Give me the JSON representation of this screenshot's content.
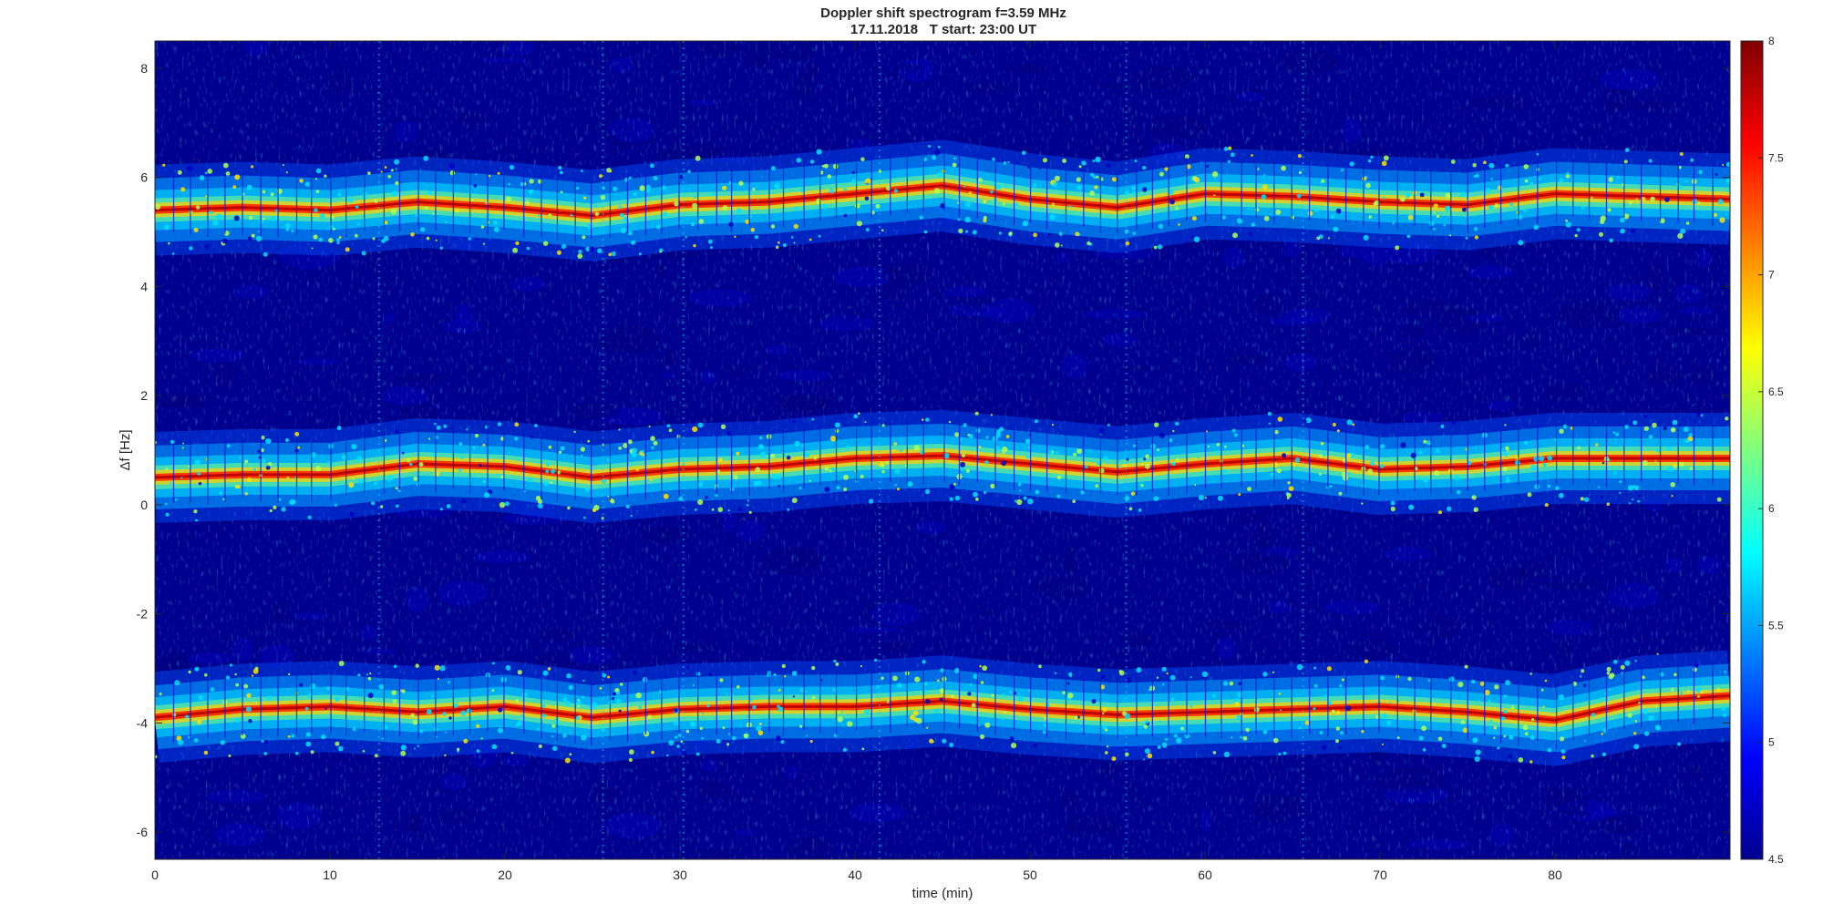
{
  "chart_data": {
    "type": "heatmap",
    "title": "Doppler shift spectrogram f=3.59 MHz",
    "subtitle": "17.11.2018   T start: 23:00 UT",
    "xlabel": "time (min)",
    "ylabel": "Δf [Hz]",
    "xlim": [
      0,
      90
    ],
    "ylim": [
      -6.5,
      8.5
    ],
    "x_ticks": [
      0,
      10,
      20,
      30,
      40,
      50,
      60,
      70,
      80
    ],
    "y_ticks": [
      -6,
      -4,
      -2,
      0,
      2,
      4,
      6,
      8
    ],
    "colorbar": {
      "colormap": "jet",
      "clim": [
        4.5,
        8
      ],
      "ticks": [
        4.5,
        5,
        5.5,
        6,
        6.5,
        7,
        7.5,
        8
      ]
    },
    "grid": false,
    "series": [
      {
        "x": [
          0,
          5,
          10,
          15,
          20,
          25,
          30,
          35,
          40,
          45,
          50,
          55,
          60,
          65,
          70,
          75,
          80,
          85,
          90
        ],
        "values": [
          5.4,
          5.45,
          5.4,
          5.55,
          5.45,
          5.3,
          5.5,
          5.55,
          5.7,
          5.85,
          5.6,
          5.45,
          5.7,
          5.65,
          5.55,
          5.5,
          5.7,
          5.65,
          5.6
        ]
      },
      {
        "x": [
          0,
          5,
          10,
          15,
          20,
          25,
          30,
          35,
          40,
          45,
          50,
          55,
          60,
          65,
          70,
          75,
          80,
          85,
          90
        ],
        "values": [
          0.5,
          0.55,
          0.55,
          0.75,
          0.7,
          0.5,
          0.65,
          0.7,
          0.85,
          0.9,
          0.75,
          0.6,
          0.75,
          0.85,
          0.65,
          0.7,
          0.85,
          0.85,
          0.85
        ]
      },
      {
        "x": [
          0,
          5,
          10,
          15,
          20,
          25,
          30,
          35,
          40,
          45,
          50,
          55,
          60,
          65,
          70,
          75,
          80,
          85,
          90
        ],
        "values": [
          -3.9,
          -3.75,
          -3.7,
          -3.8,
          -3.7,
          -3.9,
          -3.75,
          -3.7,
          -3.7,
          -3.6,
          -3.75,
          -3.85,
          -3.8,
          -3.75,
          -3.7,
          -3.8,
          -3.95,
          -3.6,
          -3.5
        ]
      }
    ]
  }
}
